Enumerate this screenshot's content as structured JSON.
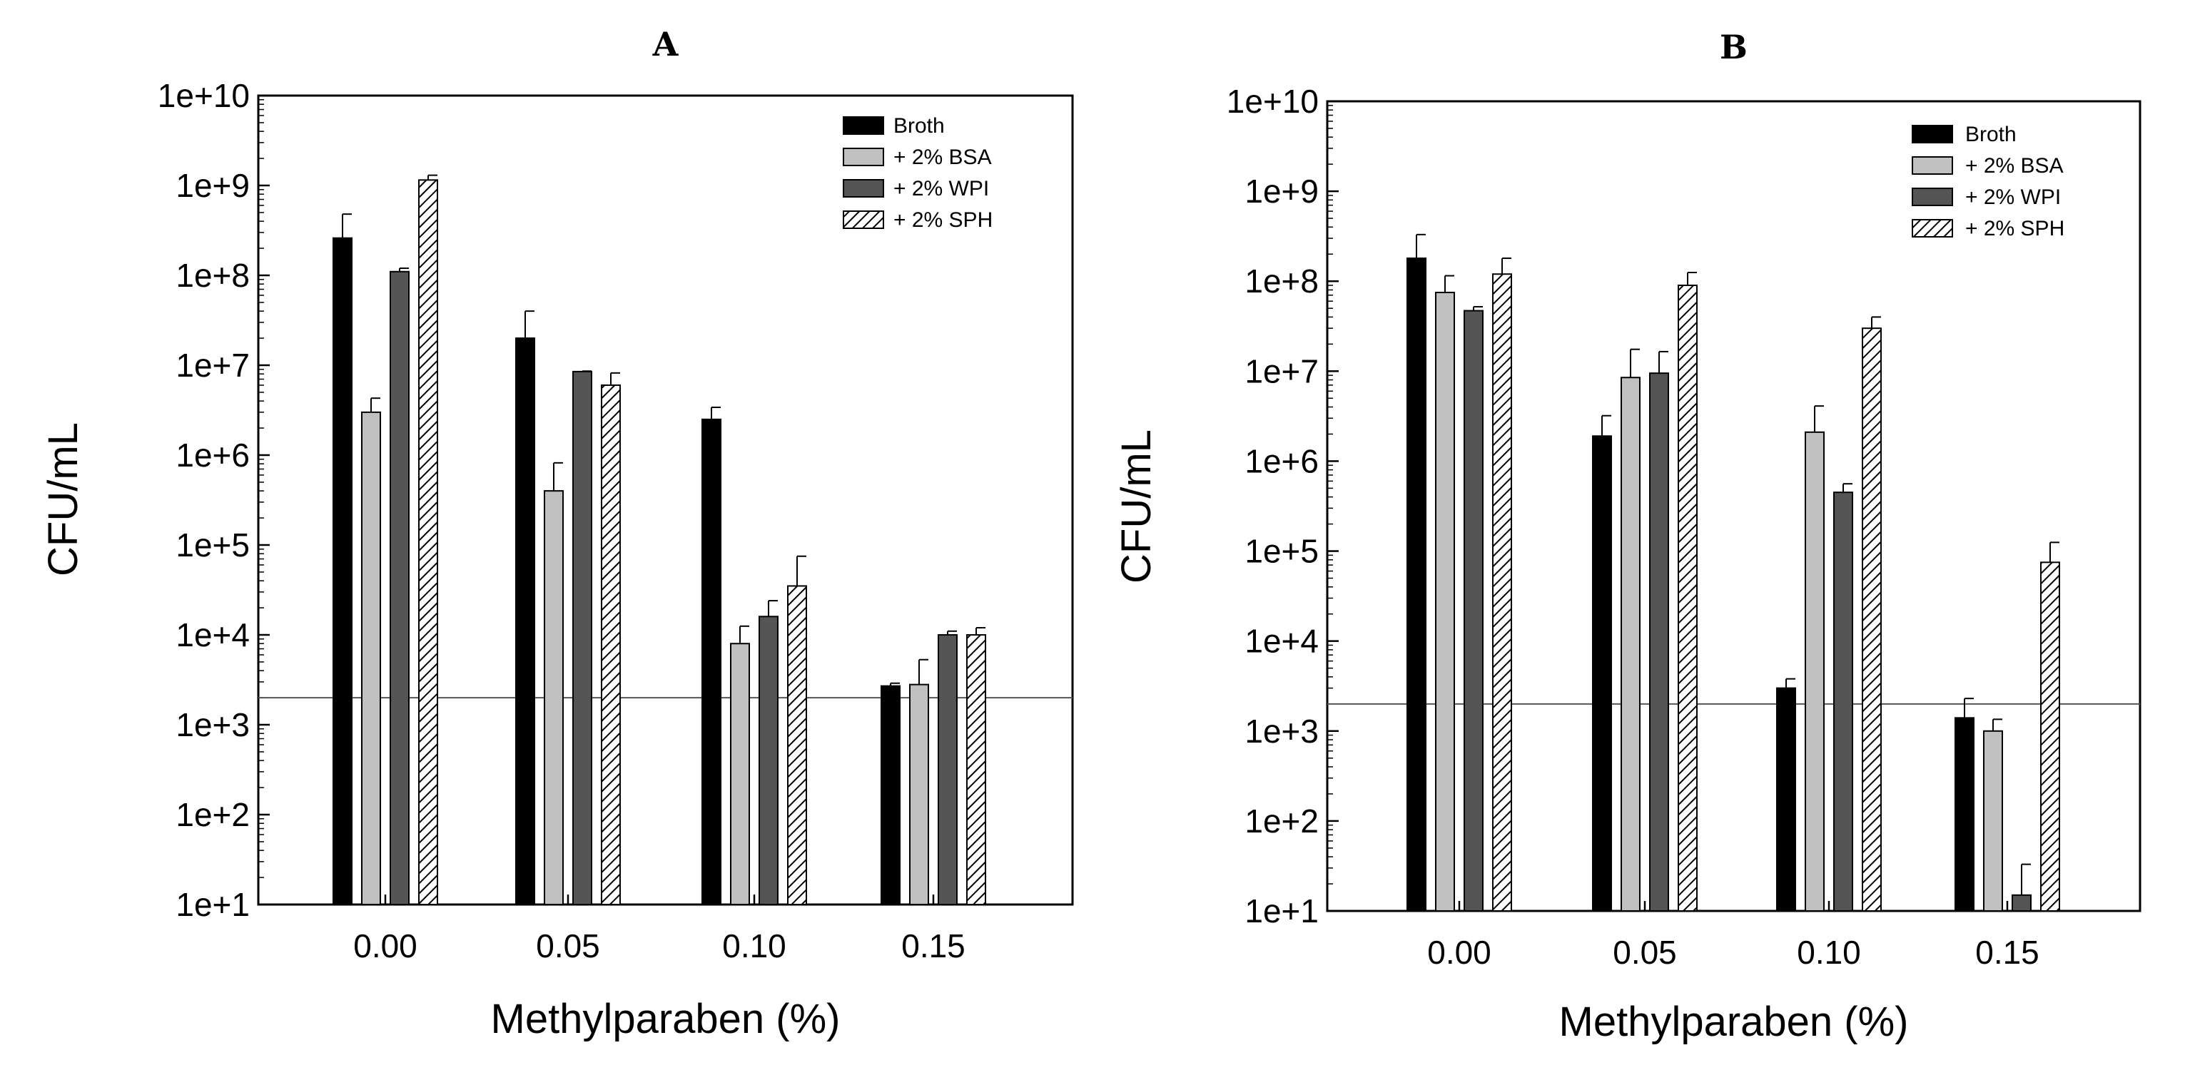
{
  "series_styles": {
    "Broth": {
      "fill": "#000000",
      "pattern": false
    },
    "+ 2% BSA": {
      "fill": "#c0c0c0",
      "pattern": false
    },
    "+ 2% WPI": {
      "fill": "#555555",
      "pattern": false
    },
    "+ 2% SPH": {
      "fill": "#ffffff",
      "pattern": true
    }
  },
  "chart_data": [
    {
      "type": "bar",
      "title": "A",
      "xlabel": "Methylparaben (%)",
      "ylabel": "CFU/mL",
      "yscale": "log",
      "ylim": [
        10,
        10000000000
      ],
      "yticks": [
        "1e+1",
        "1e+2",
        "1e+3",
        "1e+4",
        "1e+5",
        "1e+6",
        "1e+7",
        "1e+8",
        "1e+9",
        "1e+10"
      ],
      "categories": [
        "0.00",
        "0.05",
        "0.10",
        "0.15"
      ],
      "legend_position": "top-right",
      "reference_line": 2000,
      "series": [
        {
          "name": "Broth",
          "values": [
            260000000,
            20000000,
            2500000,
            2700
          ],
          "errors": [
            480000000,
            40000000,
            3400000,
            2900
          ]
        },
        {
          "name": "+ 2% BSA",
          "values": [
            3000000,
            400000,
            8000,
            2800
          ],
          "errors": [
            4300000,
            820000,
            12500,
            5300
          ]
        },
        {
          "name": "+ 2% WPI",
          "values": [
            110000000,
            8500000,
            16000,
            10000
          ],
          "errors": [
            120000000,
            8600000,
            24000,
            11000
          ]
        },
        {
          "name": "+ 2% SPH",
          "values": [
            1150000000,
            6000000,
            35000,
            10000
          ],
          "errors": [
            1300000000,
            8200000,
            75000,
            12000
          ]
        }
      ]
    },
    {
      "type": "bar",
      "title": "B",
      "xlabel": "Methylparaben (%)",
      "ylabel": "CFU/mL",
      "yscale": "log",
      "ylim": [
        10,
        10000000000
      ],
      "yticks": [
        "1e+1",
        "1e+2",
        "1e+3",
        "1e+4",
        "1e+5",
        "1e+6",
        "1e+7",
        "1e+8",
        "1e+9",
        "1e+10"
      ],
      "categories": [
        "0.00",
        "0.05",
        "0.10",
        "0.15"
      ],
      "legend_position": "top-right",
      "reference_line": 2000,
      "series": [
        {
          "name": "Broth",
          "values": [
            180000000,
            1900000,
            3000,
            1400
          ],
          "errors": [
            330000000,
            3200000,
            3800,
            2300
          ]
        },
        {
          "name": "+ 2% BSA",
          "values": [
            75000000,
            8500000,
            2100000,
            1000
          ],
          "errors": [
            115000000,
            17500000,
            4100000,
            1350
          ]
        },
        {
          "name": "+ 2% WPI",
          "values": [
            47000000,
            9500000,
            450000,
            15
          ],
          "errors": [
            52000000,
            16500000,
            560000,
            33
          ]
        },
        {
          "name": "+ 2% SPH",
          "values": [
            120000000,
            90000000,
            30000000,
            75000
          ],
          "errors": [
            180000000,
            125000000,
            40000000,
            125000
          ]
        }
      ]
    }
  ]
}
